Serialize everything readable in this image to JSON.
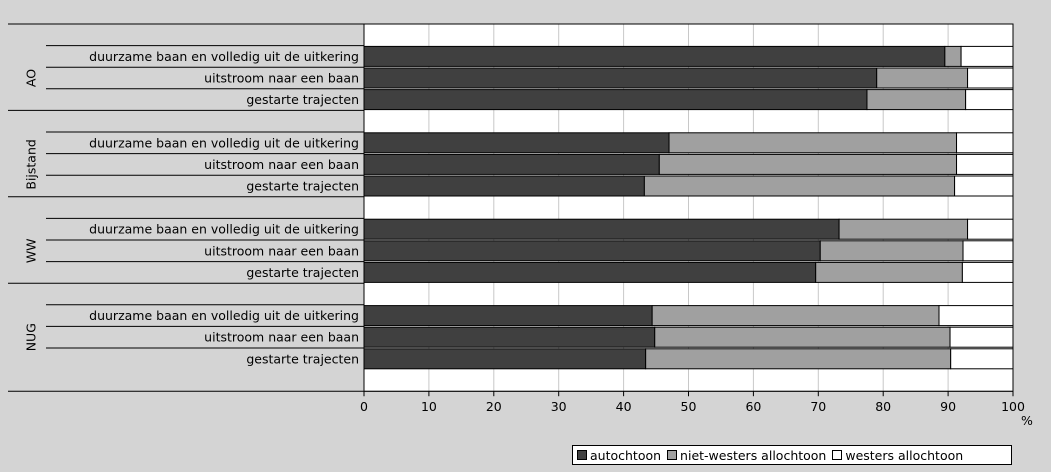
{
  "title": "",
  "chart_data": {
    "type": "bar",
    "orientation": "horizontal",
    "stacked": true,
    "xlim": [
      0,
      100
    ],
    "xticks": [
      0,
      10,
      20,
      30,
      40,
      50,
      60,
      70,
      80,
      90,
      100
    ],
    "unit_label": "%",
    "grid": true,
    "legend_position": "bottom-right",
    "series": [
      {
        "name": "autochtoon",
        "color": "#404040"
      },
      {
        "name": "niet-westers allochtoon",
        "color": "#a0a0a0"
      },
      {
        "name": "westers allochtoon",
        "color": "#ffffff"
      }
    ],
    "groups": [
      {
        "name": "AO",
        "bars": [
          {
            "label": "duurzame baan en volledig uit de uitkering",
            "values": [
              89.5,
              2.5,
              8.0
            ]
          },
          {
            "label": "uitstroom naar een baan",
            "values": [
              79.0,
              14.0,
              7.0
            ]
          },
          {
            "label": "gestarte trajecten",
            "values": [
              77.5,
              15.2,
              7.3
            ]
          }
        ]
      },
      {
        "name": "Bijstand",
        "bars": [
          {
            "label": "duurzame baan en volledig uit de uitkering",
            "values": [
              47.0,
              44.3,
              8.7
            ]
          },
          {
            "label": "uitstroom naar een baan",
            "values": [
              45.5,
              45.8,
              8.7
            ]
          },
          {
            "label": "gestarte trajecten",
            "values": [
              43.2,
              47.8,
              9.0
            ]
          }
        ]
      },
      {
        "name": "WW",
        "bars": [
          {
            "label": "duurzame baan en volledig uit de uitkering",
            "values": [
              73.2,
              19.8,
              7.0
            ]
          },
          {
            "label": "uitstroom naar een baan",
            "values": [
              70.3,
              22.0,
              7.7
            ]
          },
          {
            "label": "gestarte trajecten",
            "values": [
              69.6,
              22.6,
              7.8
            ]
          }
        ]
      },
      {
        "name": "NUG",
        "bars": [
          {
            "label": "duurzame baan en volledig uit de uitkering",
            "values": [
              44.4,
              44.2,
              11.4
            ]
          },
          {
            "label": "uitstroom naar een baan",
            "values": [
              44.8,
              45.5,
              9.7
            ]
          },
          {
            "label": "gestarte trajecten",
            "values": [
              43.4,
              47.0,
              9.6
            ]
          }
        ]
      }
    ]
  }
}
